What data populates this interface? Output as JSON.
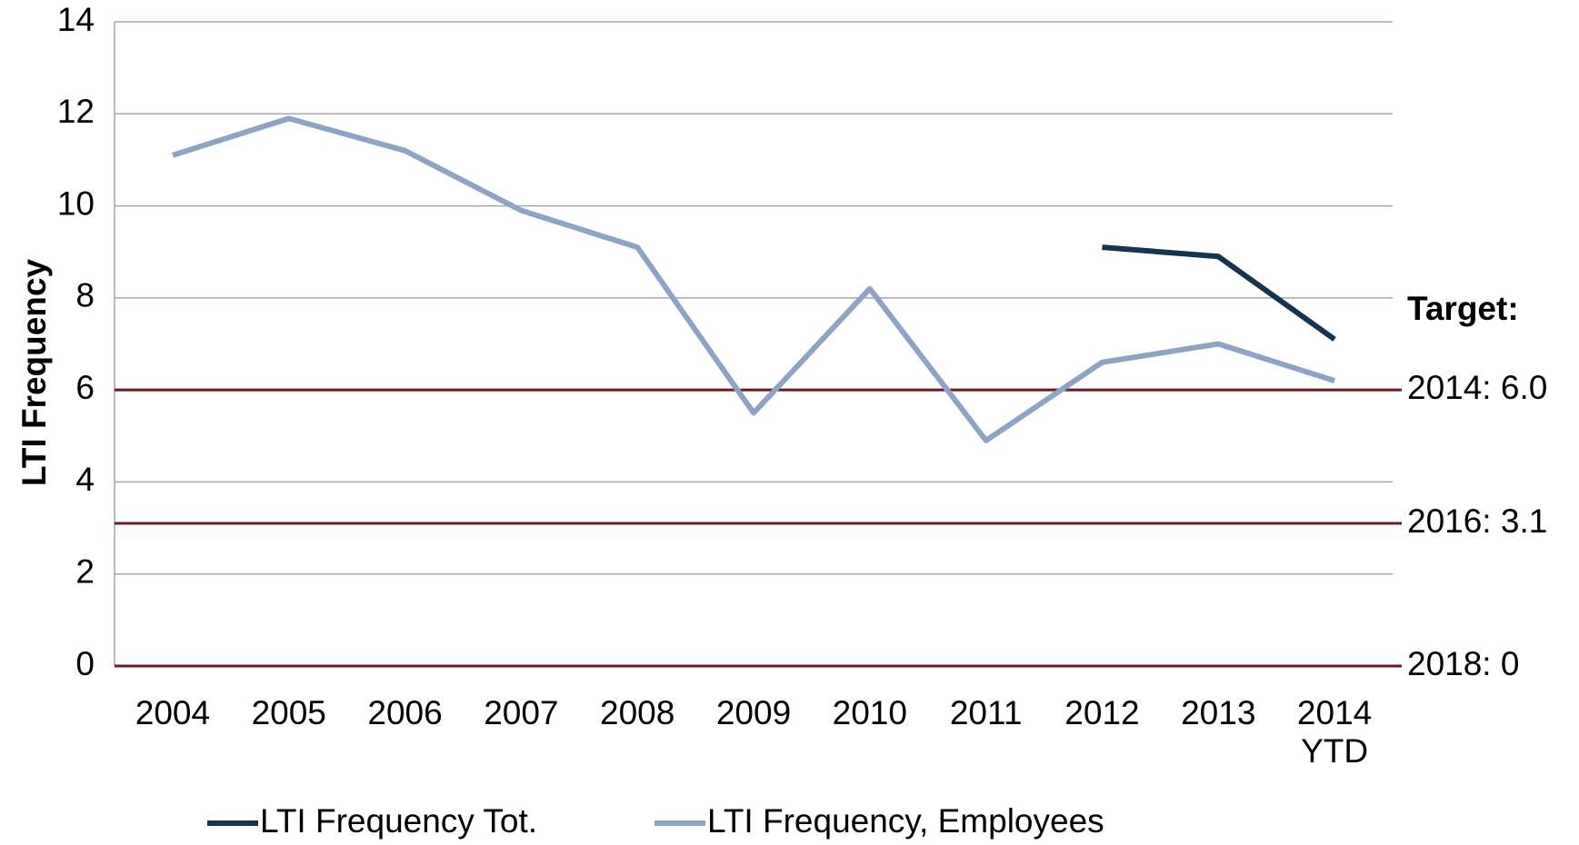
{
  "chart_data": {
    "type": "line",
    "y_label": "LTI Frequency",
    "categories": [
      "2004",
      "2005",
      "2006",
      "2007",
      "2008",
      "2009",
      "2010",
      "2011",
      "2012",
      "2013",
      "2014 YTD"
    ],
    "series": [
      {
        "name": "LTI Frequency Tot.",
        "color": "#17344f",
        "values": [
          null,
          null,
          null,
          null,
          null,
          null,
          null,
          null,
          9.1,
          8.9,
          7.1
        ]
      },
      {
        "name": "LTI Frequency, Employees",
        "color": "#8fa3c4",
        "values": [
          11.1,
          11.9,
          11.2,
          9.9,
          9.1,
          5.5,
          8.2,
          4.9,
          6.6,
          7.0,
          6.2
        ]
      }
    ],
    "ylim": [
      0,
      14
    ],
    "yticks": [
      0,
      2,
      4,
      6,
      8,
      10,
      12,
      14
    ],
    "grid": true,
    "target_title": "Target:",
    "targets": [
      {
        "value": 6.0,
        "label": "2014: 6.0"
      },
      {
        "value": 3.1,
        "label": "2016: 3.1"
      },
      {
        "value": 0,
        "label": "2018: 0"
      }
    ],
    "target_color": "#6b1a1f",
    "legend": "bottom"
  }
}
